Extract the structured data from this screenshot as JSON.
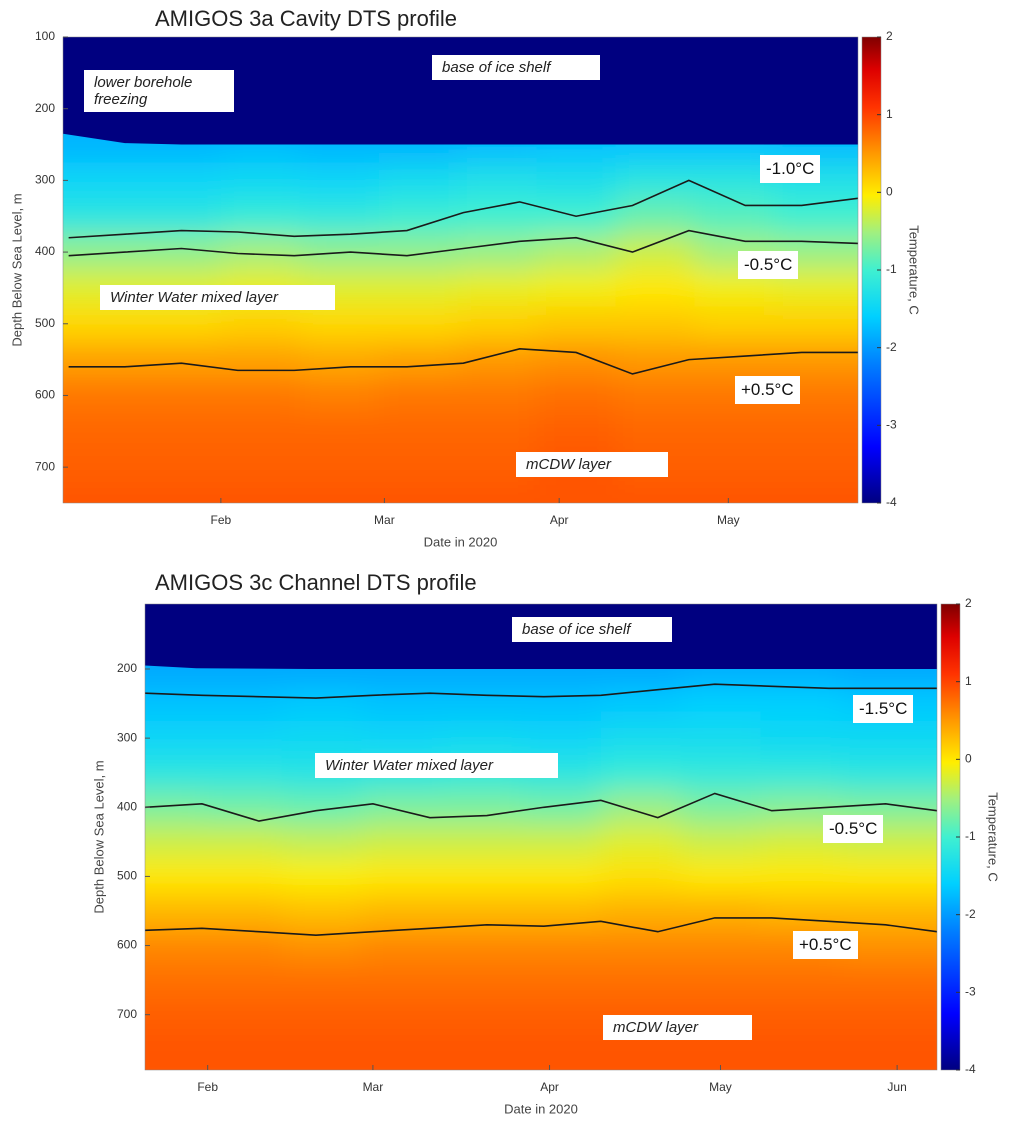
{
  "chart_data": [
    {
      "type": "heatmap",
      "title": "AMIGOS 3a Cavity DTS profile",
      "x_label": "Date in 2020",
      "y_label": "Depth Below Sea Level, m",
      "colorbar_label": "Temperature, C",
      "xlim": [
        4,
        145
      ],
      "xticks": [
        {
          "value": 32,
          "label": "Feb"
        },
        {
          "value": 61,
          "label": "Mar"
        },
        {
          "value": 92,
          "label": "Apr"
        },
        {
          "value": 122,
          "label": "May"
        }
      ],
      "ylim": [
        100,
        750
      ],
      "y_reversed": true,
      "yticks": [
        100,
        200,
        300,
        400,
        500,
        600,
        700
      ],
      "clim": [
        -4,
        2
      ],
      "cticks": [
        -4,
        -3,
        -2,
        -1,
        0,
        1,
        2
      ],
      "z_x": [
        11,
        25,
        39,
        53,
        67,
        81,
        95,
        109,
        123,
        137
      ],
      "z_y": [
        250,
        300,
        350,
        400,
        450,
        500,
        550,
        600,
        650,
        700,
        750
      ],
      "z": [
        [
          -1.8,
          -1.8,
          -1.75,
          -1.8,
          -1.8,
          -1.75,
          -1.7,
          -1.7,
          -1.7,
          -1.75
        ],
        [
          -1.5,
          -1.5,
          -1.45,
          -1.5,
          -1.4,
          -1.3,
          -1.35,
          -1.2,
          -1.2,
          -1.3
        ],
        [
          -1.2,
          -1.2,
          -1.1,
          -1.15,
          -1.05,
          -1.0,
          -1.0,
          -0.8,
          -0.9,
          -1.0
        ],
        [
          -0.6,
          -0.6,
          -0.5,
          -0.6,
          -0.6,
          -0.55,
          -0.45,
          -0.3,
          -0.5,
          -0.55
        ],
        [
          -0.2,
          -0.2,
          -0.15,
          -0.2,
          -0.2,
          -0.15,
          -0.1,
          0.0,
          -0.1,
          -0.15
        ],
        [
          0.1,
          0.1,
          0.15,
          0.1,
          0.1,
          0.15,
          0.2,
          0.2,
          0.15,
          0.15
        ],
        [
          0.45,
          0.45,
          0.45,
          0.4,
          0.45,
          0.5,
          0.55,
          0.5,
          0.5,
          0.5
        ],
        [
          0.7,
          0.7,
          0.7,
          0.65,
          0.7,
          0.7,
          0.75,
          0.7,
          0.7,
          0.7
        ],
        [
          0.8,
          0.8,
          0.8,
          0.8,
          0.8,
          0.8,
          0.85,
          0.8,
          0.8,
          0.8
        ],
        [
          0.85,
          0.85,
          0.85,
          0.85,
          0.85,
          0.85,
          0.9,
          0.85,
          0.85,
          0.85
        ],
        [
          0.9,
          0.9,
          0.9,
          0.9,
          0.9,
          0.9,
          0.9,
          0.9,
          0.9,
          0.9
        ]
      ],
      "ice_base": {
        "x": [
          4,
          15,
          25,
          145
        ],
        "y": [
          235,
          248,
          250,
          250
        ]
      },
      "series": [
        {
          "name": "-1.0°C",
          "level": -1.0,
          "color": "#1a1a1a",
          "x": [
            5,
            15,
            25,
            35,
            45,
            55,
            65,
            75,
            85,
            95,
            105,
            115,
            125,
            135,
            145
          ],
          "y": [
            380,
            375,
            370,
            372,
            378,
            375,
            370,
            345,
            330,
            350,
            335,
            300,
            335,
            335,
            325
          ]
        },
        {
          "name": "-0.5°C",
          "level": -0.5,
          "color": "#1a1a1a",
          "x": [
            5,
            15,
            25,
            35,
            45,
            55,
            65,
            75,
            85,
            95,
            105,
            115,
            125,
            135,
            145
          ],
          "y": [
            405,
            400,
            395,
            402,
            405,
            400,
            405,
            395,
            385,
            380,
            400,
            370,
            385,
            385,
            388
          ]
        },
        {
          "name": "+0.5°C",
          "level": 0.5,
          "color": "#1a1a1a",
          "x": [
            5,
            15,
            25,
            35,
            45,
            55,
            65,
            75,
            85,
            95,
            105,
            115,
            125,
            135,
            145
          ],
          "y": [
            560,
            560,
            555,
            565,
            565,
            560,
            560,
            555,
            535,
            540,
            570,
            550,
            545,
            540,
            540
          ]
        }
      ],
      "annotations": [
        "base of ice shelf",
        "lower borehole freezing",
        "Winter Water mixed layer",
        "mCDW layer"
      ]
    },
    {
      "type": "heatmap",
      "title": "AMIGOS 3c Channel DTS profile",
      "x_label": "Date in 2020",
      "y_label": "Depth Below Sea Level, m",
      "colorbar_label": "Temperature, C",
      "xlim": [
        21,
        160
      ],
      "xticks": [
        {
          "value": 32,
          "label": "Feb"
        },
        {
          "value": 61,
          "label": "Mar"
        },
        {
          "value": 92,
          "label": "Apr"
        },
        {
          "value": 122,
          "label": "May"
        },
        {
          "value": 153,
          "label": "Jun"
        }
      ],
      "ylim": [
        106,
        780
      ],
      "y_reversed": true,
      "yticks": [
        200,
        300,
        400,
        500,
        600,
        700
      ],
      "clim": [
        -4,
        2
      ],
      "cticks": [
        -4,
        -3,
        -2,
        -1,
        0,
        1,
        2
      ],
      "z_x": [
        24,
        38,
        52,
        66,
        80,
        94,
        108,
        122,
        136,
        150
      ],
      "z_y": [
        200,
        250,
        300,
        350,
        400,
        450,
        500,
        550,
        600,
        650,
        700,
        750
      ],
      "z": [
        [
          -1.9,
          -1.9,
          -1.9,
          -1.9,
          -1.9,
          -1.9,
          -1.9,
          -1.85,
          -1.85,
          -1.9
        ],
        [
          -1.7,
          -1.7,
          -1.65,
          -1.7,
          -1.7,
          -1.7,
          -1.65,
          -1.6,
          -1.6,
          -1.65
        ],
        [
          -1.5,
          -1.5,
          -1.45,
          -1.5,
          -1.45,
          -1.5,
          -1.4,
          -1.4,
          -1.45,
          -1.45
        ],
        [
          -1.2,
          -1.2,
          -1.25,
          -1.2,
          -1.15,
          -1.2,
          -1.1,
          -1.15,
          -1.15,
          -1.2
        ],
        [
          -0.7,
          -0.75,
          -0.8,
          -0.7,
          -0.7,
          -0.75,
          -0.55,
          -0.7,
          -0.65,
          -0.7
        ],
        [
          -0.3,
          -0.3,
          -0.35,
          -0.3,
          -0.3,
          -0.3,
          -0.2,
          -0.3,
          -0.25,
          -0.3
        ],
        [
          0.0,
          0.0,
          -0.05,
          0.0,
          0.0,
          0.0,
          0.05,
          0.0,
          0.0,
          0.0
        ],
        [
          0.3,
          0.3,
          0.25,
          0.3,
          0.3,
          0.3,
          0.35,
          0.35,
          0.3,
          0.3
        ],
        [
          0.6,
          0.6,
          0.55,
          0.6,
          0.6,
          0.6,
          0.6,
          0.6,
          0.6,
          0.55
        ],
        [
          0.75,
          0.75,
          0.75,
          0.75,
          0.75,
          0.75,
          0.75,
          0.75,
          0.75,
          0.75
        ],
        [
          0.85,
          0.85,
          0.85,
          0.85,
          0.85,
          0.85,
          0.85,
          0.85,
          0.85,
          0.85
        ],
        [
          0.9,
          0.9,
          0.9,
          0.9,
          0.9,
          0.9,
          0.9,
          0.9,
          0.9,
          0.9
        ]
      ],
      "ice_base": {
        "x": [
          21,
          30,
          50,
          160
        ],
        "y": [
          195,
          199,
          200,
          200
        ]
      },
      "series": [
        {
          "name": "-1.5°C",
          "level": -1.5,
          "color": "#1a1a1a",
          "x": [
            21,
            31,
            41,
            51,
            61,
            71,
            81,
            91,
            101,
            111,
            121,
            131,
            141,
            151,
            160
          ],
          "y": [
            235,
            238,
            240,
            242,
            238,
            235,
            238,
            240,
            238,
            230,
            222,
            225,
            228,
            228,
            228
          ]
        },
        {
          "name": "-0.5°C",
          "level": -0.5,
          "color": "#1a1a1a",
          "x": [
            21,
            31,
            41,
            51,
            61,
            71,
            81,
            91,
            101,
            111,
            121,
            131,
            141,
            151,
            160
          ],
          "y": [
            400,
            395,
            420,
            405,
            395,
            415,
            412,
            400,
            390,
            415,
            380,
            405,
            400,
            395,
            405
          ]
        },
        {
          "name": "+0.5°C",
          "level": 0.5,
          "color": "#1a1a1a",
          "x": [
            21,
            31,
            41,
            51,
            61,
            71,
            81,
            91,
            101,
            111,
            121,
            131,
            141,
            151,
            160
          ],
          "y": [
            578,
            575,
            580,
            585,
            580,
            575,
            570,
            572,
            565,
            580,
            560,
            560,
            565,
            570,
            580
          ]
        }
      ],
      "annotations": [
        "base of ice shelf",
        "Winter Water mixed layer",
        "mCDW layer"
      ]
    }
  ]
}
